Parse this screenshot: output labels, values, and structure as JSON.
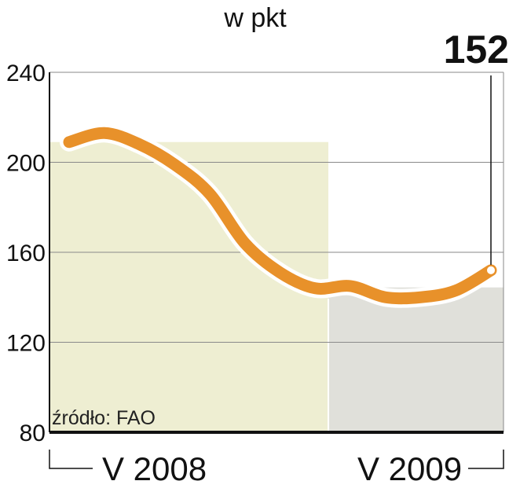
{
  "chart_data": {
    "type": "line",
    "unit": "w pkt",
    "ylim": [
      80,
      240
    ],
    "yticks": [
      "240",
      "200",
      "160",
      "120",
      "80"
    ],
    "series": [
      {
        "values": [
          209,
          213,
          208,
          199,
          186,
          164,
          151,
          144,
          145,
          140,
          140,
          143,
          152
        ]
      }
    ],
    "periods": [
      {
        "label": "V 2008",
        "fill": "#eeeed2"
      },
      {
        "label": "V 2009",
        "fill": "#e0e0da"
      }
    ],
    "callout": "152",
    "source": "źródło: FAO",
    "line_color": "#e8912a",
    "grid": true
  }
}
